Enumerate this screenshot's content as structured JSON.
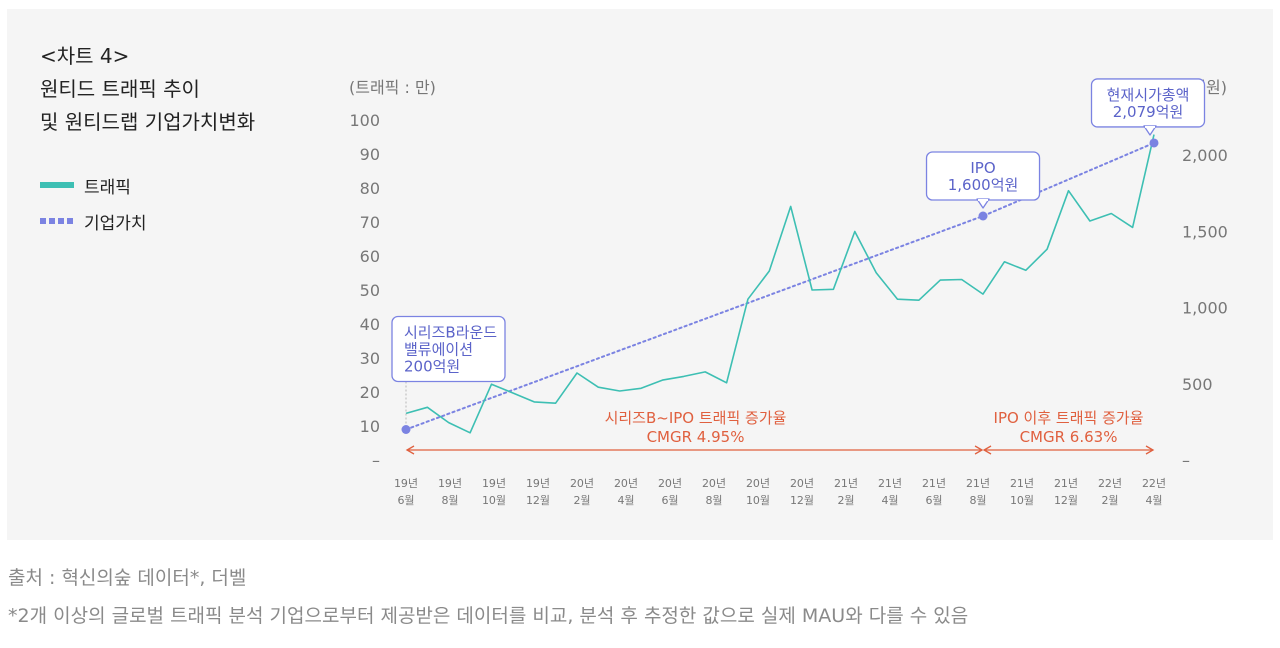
{
  "title": {
    "line1": "<차트 4>",
    "line2": "원티드 트래픽 추이",
    "line3": "및 원티드랩 기업가치변화"
  },
  "legend": {
    "traffic": "트래픽",
    "valuation": "기업가치"
  },
  "footer": {
    "source": "출처 : 혁신의숲 데이터*, 더벨",
    "note": "*2개 이상의 글로벌 트래픽 분석 기업으로부터 제공받은 데이터를 비교, 분석 후 추정한 값으로 실제 MAU와 다를 수 있음"
  },
  "colors": {
    "traffic": "#3dbfb3",
    "valuation": "#7b83e2",
    "callout_text": "#5b63c9",
    "cmgr": "#e0603f",
    "axis_text": "#777777",
    "panel_bg": "#f5f5f5"
  },
  "chart_data": {
    "type": "line",
    "left_axis_label": "(트래픽 : 만)",
    "right_axis_label": "(기업가치 : 억원)",
    "left_ticks": [
      "–",
      "10",
      "20",
      "30",
      "40",
      "50",
      "60",
      "70",
      "80",
      "90",
      "100"
    ],
    "right_ticks": [
      "–",
      "500",
      "1,000",
      "1,500",
      "2,000"
    ],
    "ylim_left": [
      0,
      100
    ],
    "ylim_right": [
      0,
      2000
    ],
    "x_label_count": 18,
    "x_labels": [
      [
        "19년",
        "6월"
      ],
      [
        "19년",
        "8월"
      ],
      [
        "19년",
        "10월"
      ],
      [
        "19년",
        "12월"
      ],
      [
        "20년",
        "2월"
      ],
      [
        "20년",
        "4월"
      ],
      [
        "20년",
        "6월"
      ],
      [
        "20년",
        "8월"
      ],
      [
        "20년",
        "10월"
      ],
      [
        "20년",
        "12월"
      ],
      [
        "21년",
        "2월"
      ],
      [
        "21년",
        "4월"
      ],
      [
        "21년",
        "6월"
      ],
      [
        "21년",
        "8월"
      ],
      [
        "21년",
        "10월"
      ],
      [
        "21년",
        "12월"
      ],
      [
        "22년",
        "2월"
      ],
      [
        "22년",
        "4월"
      ]
    ],
    "traffic": [
      13.7,
      15.5,
      11.0,
      8.0,
      22.3,
      19.7,
      17.1,
      16.7,
      25.6,
      21.4,
      20.3,
      21.1,
      23.5,
      24.6,
      25.9,
      22.7,
      47.3,
      55.6,
      74.6,
      50.0,
      50.2,
      67.2,
      55.1,
      47.3,
      47.0,
      52.9,
      53.1,
      48.8,
      58.3,
      55.8,
      62.0,
      79.2,
      70.3,
      72.5,
      68.4,
      95.7
    ],
    "valuation_points": [
      {
        "index": 0,
        "value": 200,
        "label": [
          "시리즈B라운드",
          "밸류에이션",
          "200억원"
        ]
      },
      {
        "index": 27,
        "value": 1600,
        "label": [
          "IPO",
          "1,600억원"
        ]
      },
      {
        "index": 35,
        "value": 2079,
        "label": [
          "현재시가총액",
          "2,079억원"
        ]
      }
    ],
    "cmgr": [
      {
        "start": 0,
        "end": 27,
        "label": "시리즈B~IPO 트래픽 증가율",
        "value": "CMGR 4.95%"
      },
      {
        "start": 27,
        "end": 35,
        "label": "IPO 이후 트래픽 증가율",
        "value": "CMGR 6.63%"
      }
    ]
  }
}
